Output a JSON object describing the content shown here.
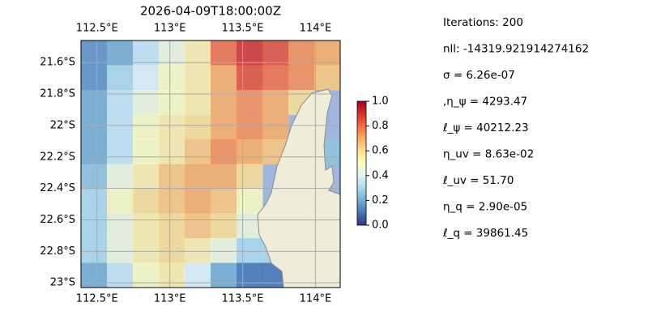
{
  "chart_data": {
    "type": "heatmap",
    "title": "2026-04-09T18:00:00Z",
    "xlim": [
      112.39,
      114.17
    ],
    "ylim": [
      -23.03,
      -21.46
    ],
    "xticks": [
      {
        "value": 112.5,
        "label": "112.5°E"
      },
      {
        "value": 113,
        "label": "113°E"
      },
      {
        "value": 113.5,
        "label": "113.5°E"
      },
      {
        "value": 114,
        "label": "114°E"
      }
    ],
    "yticks": [
      {
        "value": -21.6,
        "label": "21.6°S"
      },
      {
        "value": -21.8,
        "label": "21.8°S"
      },
      {
        "value": -22,
        "label": "22°S"
      },
      {
        "value": -22.2,
        "label": "22.2°S"
      },
      {
        "value": -22.4,
        "label": "22.4°S"
      },
      {
        "value": -22.6,
        "label": "22.6°S"
      },
      {
        "value": -22.8,
        "label": "22.8°S"
      },
      {
        "value": -23,
        "label": "23°S"
      }
    ],
    "grid": true,
    "z": [
      [
        0.15,
        0.2,
        0.35,
        0.45,
        0.55,
        0.8,
        0.9,
        0.85,
        0.75,
        0.7
      ],
      [
        0.15,
        0.3,
        0.4,
        0.5,
        0.55,
        0.7,
        0.85,
        0.8,
        0.75,
        0.65
      ],
      [
        0.2,
        0.35,
        0.45,
        0.5,
        0.55,
        0.7,
        0.75,
        0.7,
        0.6,
        null
      ],
      [
        0.2,
        0.35,
        0.5,
        0.55,
        0.6,
        0.7,
        0.75,
        0.7,
        null,
        null
      ],
      [
        0.2,
        0.35,
        0.5,
        0.55,
        0.65,
        0.75,
        0.7,
        0.65,
        null,
        0.25
      ],
      [
        0.25,
        0.45,
        0.55,
        0.65,
        0.7,
        0.7,
        0.6,
        null,
        null,
        null
      ],
      [
        0.3,
        0.5,
        0.6,
        0.65,
        0.7,
        0.65,
        0.5,
        null,
        null,
        null
      ],
      [
        0.3,
        0.45,
        0.55,
        0.6,
        0.65,
        0.6,
        0.45,
        null,
        null,
        null
      ],
      [
        0.3,
        0.45,
        0.55,
        0.6,
        0.55,
        0.45,
        0.3,
        0.3,
        null,
        null
      ],
      [
        0.2,
        0.35,
        0.5,
        0.55,
        0.4,
        0.2,
        0.1,
        0.1,
        null,
        null
      ]
    ],
    "colormap": [
      "#313695",
      "#4575b4",
      "#74add1",
      "#abd9e9",
      "#e0f3f8",
      "#ffffbf",
      "#fee090",
      "#fdae61",
      "#f46d43",
      "#d73027",
      "#a50026"
    ],
    "clim": [
      0,
      1
    ],
    "cticks": [
      {
        "value": 0,
        "label": "0.0"
      },
      {
        "value": 0.2,
        "label": "0.2"
      },
      {
        "value": 0.4,
        "label": "0.4"
      },
      {
        "value": 0.6,
        "label": "0.6"
      },
      {
        "value": 0.8,
        "label": "0.8"
      },
      {
        "value": 1,
        "label": "1.0"
      }
    ],
    "info": [
      "Iterations: 200",
      "nll: -14319.921914274162",
      "σ = 6.26e-07",
      ",η_ψ = 4293.47",
      "ℓ_ψ = 40212.23",
      "η_uv = 8.63e-02",
      "ℓ_uv = 51.70",
      "η_q = 2.90e-05",
      "ℓ_q = 39861.45"
    ]
  }
}
